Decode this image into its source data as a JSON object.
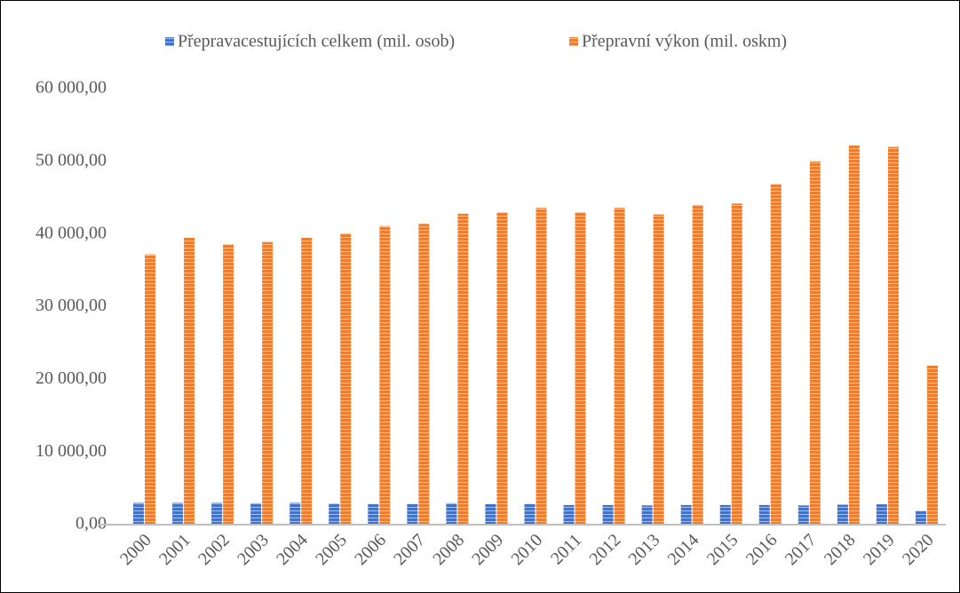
{
  "chart_data": {
    "type": "bar",
    "categories": [
      "2000",
      "2001",
      "2002",
      "2003",
      "2004",
      "2005",
      "2006",
      "2007",
      "2008",
      "2009",
      "2010",
      "2011",
      "2012",
      "2013",
      "2014",
      "2015",
      "2016",
      "2017",
      "2018",
      "2019",
      "2020"
    ],
    "series": [
      {
        "name": "Přepravacestujících celkem (mil. osob)",
        "color": "#4472c4",
        "values": [
          3000,
          3000,
          3000,
          2950,
          3000,
          2900,
          2850,
          2850,
          2950,
          2850,
          2850,
          2700,
          2700,
          2650,
          2700,
          2700,
          2700,
          2650,
          2750,
          2800,
          1900
        ]
      },
      {
        "name": "Přepravní výkon (mil. oskm)",
        "color": "#ed7d31",
        "values": [
          37200,
          39500,
          38600,
          38900,
          39500,
          40100,
          41100,
          41400,
          42800,
          43000,
          43600,
          43000,
          43600,
          42700,
          44000,
          44200,
          46900,
          50000,
          52200,
          52000,
          21900
        ]
      }
    ],
    "ylim": [
      0,
      60000
    ],
    "yticks": [
      {
        "value": 0,
        "label": "0,00"
      },
      {
        "value": 10000,
        "label": "10 000,00"
      },
      {
        "value": 20000,
        "label": "20 000,00"
      },
      {
        "value": 30000,
        "label": "30 000,00"
      },
      {
        "value": 40000,
        "label": "40 000,00"
      },
      {
        "value": 50000,
        "label": "50 000,00"
      },
      {
        "value": 60000,
        "label": "60 000,00"
      }
    ],
    "grid": false,
    "legend": "top"
  }
}
